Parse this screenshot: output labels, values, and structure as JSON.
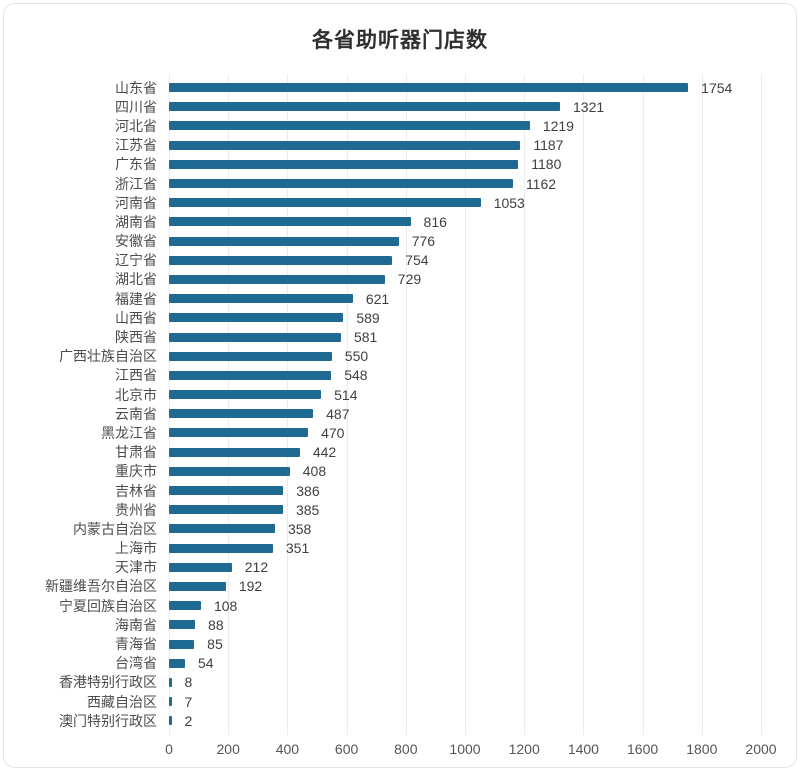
{
  "chart_data": {
    "type": "bar",
    "orientation": "horizontal",
    "title": "各省助听器门店数",
    "categories": [
      "山东省",
      "四川省",
      "河北省",
      "江苏省",
      "广东省",
      "浙江省",
      "河南省",
      "湖南省",
      "安徽省",
      "辽宁省",
      "湖北省",
      "福建省",
      "山西省",
      "陕西省",
      "广西壮族自治区",
      "江西省",
      "北京市",
      "云南省",
      "黑龙江省",
      "甘肃省",
      "重庆市",
      "吉林省",
      "贵州省",
      "内蒙古自治区",
      "上海市",
      "天津市",
      "新疆维吾尔自治区",
      "宁夏回族自治区",
      "海南省",
      "青海省",
      "台湾省",
      "香港特别行政区",
      "西藏自治区",
      "澳门特别行政区"
    ],
    "values": [
      1754,
      1321,
      1219,
      1187,
      1180,
      1162,
      1053,
      816,
      776,
      754,
      729,
      621,
      589,
      581,
      550,
      548,
      514,
      487,
      470,
      442,
      408,
      386,
      385,
      358,
      351,
      212,
      192,
      108,
      88,
      85,
      54,
      8,
      7,
      2
    ],
    "xlabel": "",
    "ylabel": "",
    "xlim": [
      0,
      2000
    ],
    "x_ticks": [
      0,
      200,
      400,
      600,
      800,
      1000,
      1200,
      1400,
      1600,
      1800,
      2000
    ],
    "grid": "vertical",
    "legend": "none",
    "bar_color": "#1e6a93",
    "gridline_color": "#ececec",
    "label_color": "#4d4d4d",
    "value_color": "#3f3f3f"
  }
}
